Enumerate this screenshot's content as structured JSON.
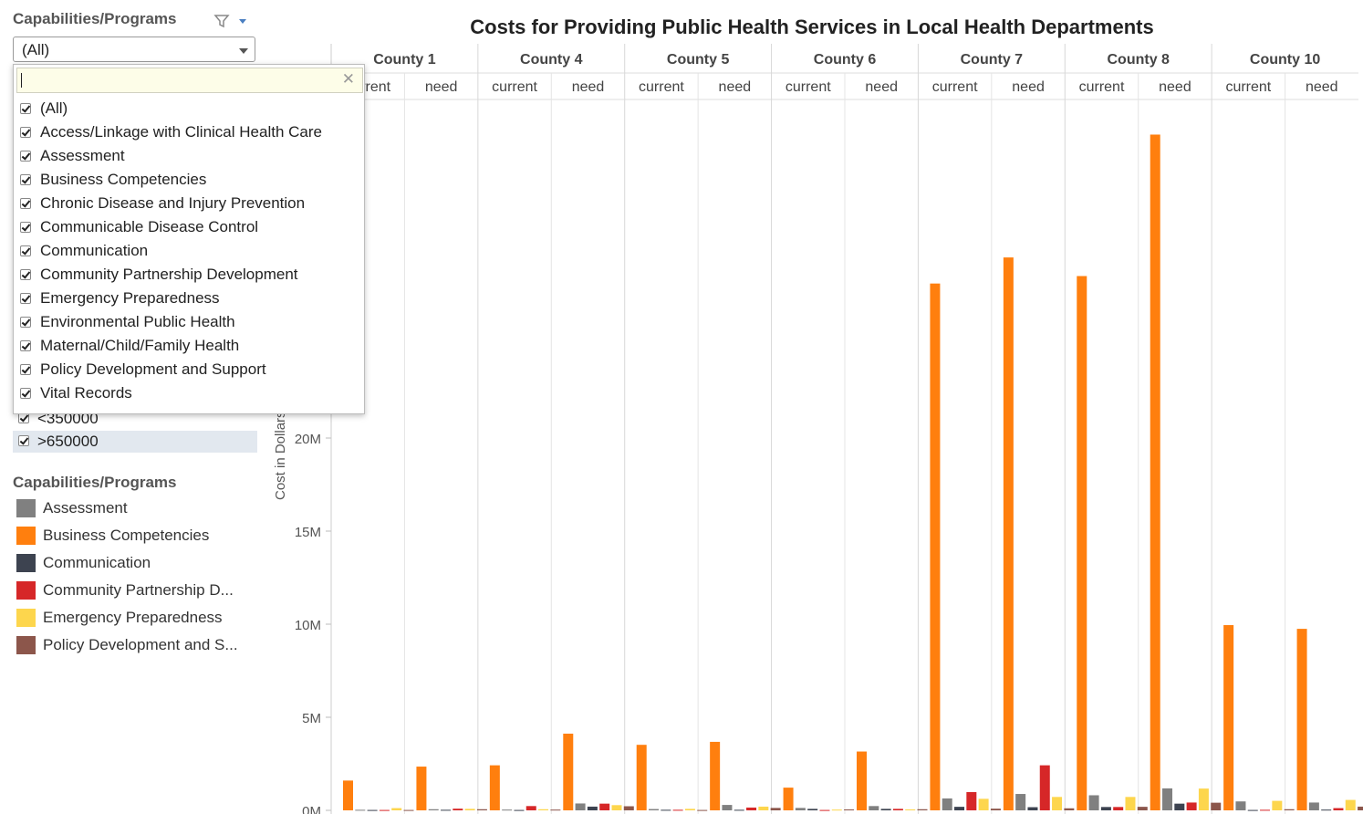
{
  "filter": {
    "title": "Capabilities/Programs",
    "dropdown_value": "(All)",
    "search_value": "",
    "options": [
      {
        "label": "(All)",
        "checked": true
      },
      {
        "label": "Access/Linkage with Clinical Health Care",
        "checked": true
      },
      {
        "label": "Assessment",
        "checked": true
      },
      {
        "label": "Business Competencies",
        "checked": true
      },
      {
        "label": "Chronic Disease and Injury Prevention",
        "checked": true
      },
      {
        "label": "Communicable Disease Control",
        "checked": true
      },
      {
        "label": "Communication",
        "checked": true
      },
      {
        "label": "Community Partnership Development",
        "checked": true
      },
      {
        "label": "Emergency Preparedness",
        "checked": true
      },
      {
        "label": "Environmental Public Health",
        "checked": true
      },
      {
        "label": "Maternal/Child/Family Health",
        "checked": true
      },
      {
        "label": "Policy Development and Support",
        "checked": true
      },
      {
        "label": "Vital Records",
        "checked": true
      }
    ]
  },
  "size_filter": {
    "rows": [
      {
        "label": "<350000",
        "checked": true
      },
      {
        "label": ">650000",
        "checked": true
      }
    ]
  },
  "legend": {
    "title": "Capabilities/Programs",
    "items": [
      {
        "label": "Assessment",
        "color": "#808080"
      },
      {
        "label": "Business Competencies",
        "color": "#ff7f0e"
      },
      {
        "label": "Communication",
        "color": "#3d4350"
      },
      {
        "label": "Community Partnership D...",
        "color": "#d62728"
      },
      {
        "label": "Emergency Preparedness",
        "color": "#fdd64d"
      },
      {
        "label": "Policy Development and S...",
        "color": "#8c564b"
      }
    ]
  },
  "chart_data": {
    "type": "bar",
    "title": "Costs for Providing Public Health Services in Local Health Departments",
    "ylabel": "Cost in Dollars",
    "ylim": [
      0,
      37000000
    ],
    "yticks": [
      {
        "value": 0,
        "label": "0M"
      },
      {
        "value": 5000000,
        "label": "5M"
      },
      {
        "value": 10000000,
        "label": "10M"
      },
      {
        "value": 15000000,
        "label": "15M"
      },
      {
        "value": 20000000,
        "label": "20M"
      }
    ],
    "panels": [
      {
        "county": "County 1",
        "cols": [
          "current",
          "need"
        ]
      },
      {
        "county": "County 4",
        "cols": [
          "current",
          "need"
        ]
      },
      {
        "county": "County 5",
        "cols": [
          "current",
          "need"
        ]
      },
      {
        "county": "County 6",
        "cols": [
          "current",
          "need"
        ]
      },
      {
        "county": "County 7",
        "cols": [
          "current",
          "need"
        ]
      },
      {
        "county": "County 8",
        "cols": [
          "current",
          "need"
        ]
      },
      {
        "county": "County 10",
        "cols": [
          "current",
          "need"
        ]
      }
    ],
    "series_order": [
      "Business Competencies",
      "Assessment",
      "Communication",
      "Community Partnership Development",
      "Emergency Preparedness",
      "Policy Development and Support"
    ],
    "series_colors": [
      "#ff7f0e",
      "#808080",
      "#3d4350",
      "#d62728",
      "#fdd64d",
      "#8c564b"
    ],
    "columns": [
      {
        "county": "County 1",
        "type": "current",
        "values": [
          1600000,
          30000,
          20000,
          20000,
          120000,
          20000
        ]
      },
      {
        "county": "County 1",
        "type": "need",
        "values": [
          2350000,
          60000,
          30000,
          90000,
          80000,
          60000
        ]
      },
      {
        "county": "County 4",
        "type": "current",
        "values": [
          2420000,
          40000,
          20000,
          230000,
          60000,
          40000
        ]
      },
      {
        "county": "County 4",
        "type": "need",
        "values": [
          4120000,
          370000,
          200000,
          360000,
          280000,
          220000
        ]
      },
      {
        "county": "County 5",
        "type": "current",
        "values": [
          3520000,
          70000,
          30000,
          30000,
          80000,
          20000
        ]
      },
      {
        "county": "County 5",
        "type": "need",
        "values": [
          3680000,
          290000,
          30000,
          150000,
          200000,
          130000
        ]
      },
      {
        "county": "County 6",
        "type": "current",
        "values": [
          1220000,
          130000,
          80000,
          20000,
          40000,
          50000
        ]
      },
      {
        "county": "County 6",
        "type": "need",
        "values": [
          3160000,
          230000,
          80000,
          80000,
          50000,
          60000
        ]
      },
      {
        "county": "County 7",
        "type": "current",
        "values": [
          28300000,
          640000,
          190000,
          980000,
          620000,
          90000
        ]
      },
      {
        "county": "County 7",
        "type": "need",
        "values": [
          29700000,
          880000,
          170000,
          2420000,
          720000,
          110000
        ]
      },
      {
        "county": "County 8",
        "type": "current",
        "values": [
          28700000,
          810000,
          180000,
          180000,
          720000,
          190000
        ]
      },
      {
        "county": "County 8",
        "type": "need",
        "values": [
          36300000,
          1180000,
          360000,
          420000,
          1170000,
          410000
        ]
      },
      {
        "county": "County 10",
        "type": "current",
        "values": [
          9950000,
          480000,
          20000,
          30000,
          510000,
          60000
        ]
      },
      {
        "county": "County 10",
        "type": "need",
        "values": [
          9750000,
          420000,
          40000,
          120000,
          560000,
          200000
        ]
      }
    ]
  }
}
